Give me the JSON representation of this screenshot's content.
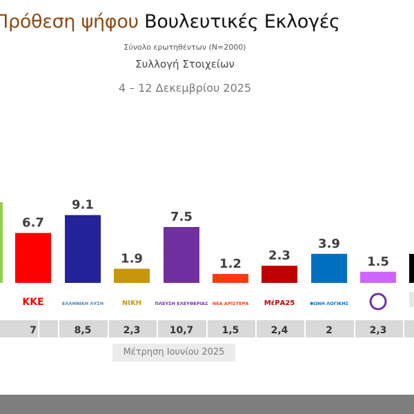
{
  "header": {
    "title_part1": "Πρόθεση ψήφου",
    "title_part2": "Βουλευτικές Εκλογές",
    "sample": "Σύνολο ερωτηθέντων (N=2000)",
    "collection": "Συλλογή Στοιχείων",
    "dates": "4 – 12 Δεκεμβρίου 2025"
  },
  "chart_data": {
    "type": "bar",
    "title": "Πρόθεση ψήφου Βουλευτικές Εκλογές",
    "categories": [
      "(cut off left)",
      "ΚΚΕ",
      "Ελληνική Λύση",
      "ΝΙΚΗ",
      "Πλεύση Ελευθερίας",
      "Νέα Αριστερά",
      "ΜέΡΑ25",
      "Φωνή Λογικής",
      "(purple logo)",
      "(cut off right)"
    ],
    "values": [
      null,
      6.7,
      9.1,
      1.9,
      7.5,
      1.2,
      2.3,
      3.9,
      1.5,
      null
    ],
    "value_labels": [
      "",
      "6.7",
      "9.1",
      "1.9",
      "7.5",
      "1.2",
      "2.3",
      "3.9",
      "1.5",
      ""
    ],
    "colors": [
      "#92d050",
      "#ff0000",
      "#24239a",
      "#c8960c",
      "#7030a0",
      "#ff3a10",
      "#c00000",
      "#0070c0",
      "#cc66ff",
      "#000000"
    ],
    "previous_label": "Μέτρηση Ιουνίου 2025",
    "previous_values": [
      "",
      "7",
      "8,5",
      "2,3",
      "10,7",
      "1,5",
      "2,4",
      "2",
      "2,3",
      ""
    ],
    "logo_text": [
      "",
      "ΚΚΕ",
      "ΕΛΛΗΝΙΚΗ ΛΥΣΗ",
      "ΝΙΚΗ",
      "ΠΛΕΥΣΗ ΕΛΕΥΘΕΡΙΑΣ",
      "ΝΕΑ ΑΡΙΣΤΕΡΑ",
      "ΜέΡΑ25",
      "ΦΩΝΗ ΛΟΓΙΚΗΣ",
      "",
      ""
    ],
    "grid": false
  }
}
